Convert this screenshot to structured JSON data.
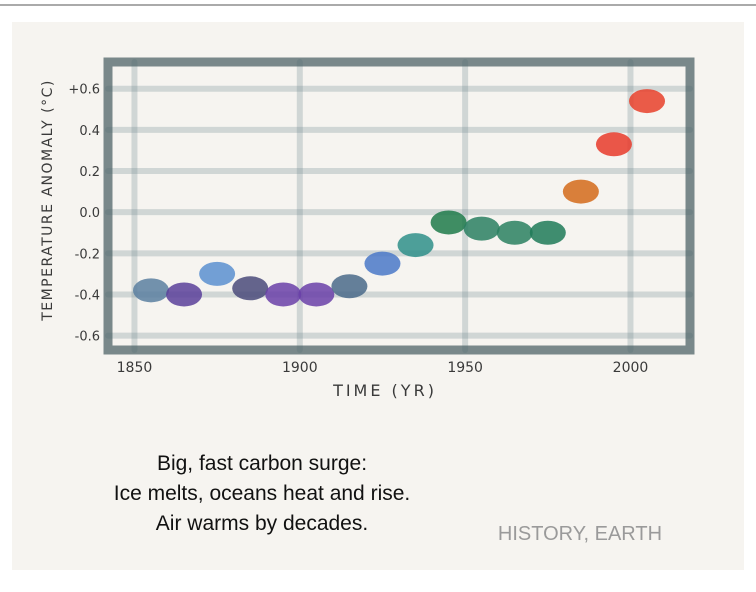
{
  "chart_data": {
    "type": "scatter",
    "y_label": "TEMPERATURE ANOMALY (°C)",
    "x_label": "TIME (YR)",
    "x": [
      1855,
      1865,
      1875,
      1885,
      1895,
      1905,
      1915,
      1925,
      1935,
      1945,
      1955,
      1965,
      1975,
      1985,
      1995,
      2005
    ],
    "values": [
      -0.38,
      -0.4,
      -0.3,
      -0.37,
      -0.4,
      -0.4,
      -0.36,
      -0.25,
      -0.16,
      -0.05,
      -0.08,
      -0.1,
      -0.1,
      0.1,
      0.33,
      0.54
    ],
    "colors": [
      "#5a7fa0",
      "#5b3f9a",
      "#5b8fd0",
      "#4a4a7a",
      "#6a3fa8",
      "#6a3fa8",
      "#4a6a8a",
      "#4a78c8",
      "#2f8f8a",
      "#1f7a4a",
      "#2a7f62",
      "#2a8060",
      "#1f7a58",
      "#d46a1a",
      "#e83a2a",
      "#e8402a"
    ],
    "xlim": [
      1842,
      2018
    ],
    "ylim": [
      -0.67,
      0.73
    ],
    "xticks": [
      1850,
      1900,
      1950,
      2000
    ],
    "yticks": [
      {
        "value": 0.6,
        "label": "+0.6"
      },
      0.4,
      0.2,
      {
        "value": 0.0,
        "label": "0.0"
      },
      -0.2,
      -0.4,
      -0.6
    ],
    "grid": true
  },
  "poem": {
    "lines": [
      "Big, fast carbon surge:",
      "Ice melts, oceans heat and rise.",
      "Air warms by decades."
    ],
    "signature": "HISTORY, EARTH"
  }
}
